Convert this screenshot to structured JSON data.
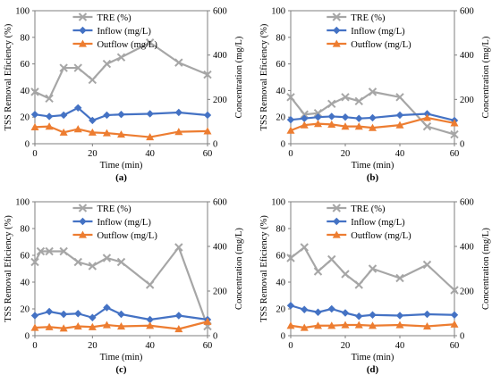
{
  "chart_data": [
    {
      "type": "line",
      "panel_label": "(a)",
      "xlabel": "Time (min)",
      "ylabel_left": "TSS Removal Eficiency (%)",
      "ylabel_right": "Concentration (mg/L)",
      "xlim": [
        0,
        60
      ],
      "ylim_left": [
        0,
        100
      ],
      "ylim_right": [
        0,
        600
      ],
      "x_ticks": [
        "0",
        "20",
        "40",
        "60"
      ],
      "y_left_ticks": [
        "0",
        "20",
        "40",
        "60",
        "80",
        "100"
      ],
      "y_right_ticks": [
        "0",
        "200",
        "400",
        "600"
      ],
      "legend_position": "top-center",
      "grid": false,
      "series": [
        {
          "name": "TRE (%)",
          "axis": "left",
          "color": "#a6a6a6",
          "marker": "x",
          "x": [
            0,
            5,
            10,
            15,
            20,
            25,
            30,
            40,
            50,
            60
          ],
          "y": [
            39,
            34,
            57,
            57,
            48,
            60,
            65,
            76,
            61,
            52
          ]
        },
        {
          "name": "Inflow (mg/L)",
          "axis": "right",
          "color": "#4472c4",
          "marker": "diamond",
          "x": [
            0,
            5,
            10,
            15,
            20,
            25,
            30,
            40,
            50,
            60
          ],
          "y": [
            132,
            123,
            129,
            162,
            105,
            129,
            132,
            135,
            141,
            129
          ]
        },
        {
          "name": "Outflow (mg/L)",
          "axis": "right",
          "color": "#ed7d31",
          "marker": "triangle",
          "x": [
            0,
            5,
            10,
            15,
            20,
            25,
            30,
            40,
            50,
            60
          ],
          "y": [
            75,
            78,
            51,
            66,
            51,
            48,
            42,
            30,
            54,
            57
          ]
        }
      ]
    },
    {
      "type": "line",
      "panel_label": "(b)",
      "xlabel": "Time (min)",
      "ylabel_left": "TSS Removal Eficiency (%)",
      "ylabel_right": "Concentration (mg/L)",
      "xlim": [
        0,
        60
      ],
      "ylim_left": [
        0,
        100
      ],
      "ylim_right": [
        0,
        600
      ],
      "x_ticks": [
        "0",
        "20",
        "40",
        "60"
      ],
      "y_left_ticks": [
        "0",
        "20",
        "40",
        "60",
        "80",
        "100"
      ],
      "y_right_ticks": [
        "0",
        "200",
        "400",
        "600"
      ],
      "legend_position": "top-center",
      "grid": false,
      "series": [
        {
          "name": "TRE (%)",
          "axis": "left",
          "color": "#a6a6a6",
          "marker": "x",
          "x": [
            0,
            5,
            10,
            15,
            20,
            25,
            30,
            40,
            50,
            60
          ],
          "y": [
            35,
            22,
            23,
            30,
            35,
            32,
            39,
            35,
            13,
            7
          ]
        },
        {
          "name": "Inflow (mg/L)",
          "axis": "right",
          "color": "#4472c4",
          "marker": "diamond",
          "x": [
            0,
            5,
            10,
            15,
            20,
            25,
            30,
            40,
            50,
            60
          ],
          "y": [
            108,
            114,
            120,
            123,
            120,
            114,
            117,
            129,
            135,
            105
          ]
        },
        {
          "name": "Outflow (mg/L)",
          "axis": "right",
          "color": "#ed7d31",
          "marker": "triangle",
          "x": [
            0,
            5,
            10,
            15,
            20,
            25,
            30,
            40,
            50,
            60
          ],
          "y": [
            60,
            84,
            90,
            87,
            78,
            78,
            72,
            84,
            117,
            93
          ]
        }
      ]
    },
    {
      "type": "line",
      "panel_label": "(c)",
      "xlabel": "Time (min)",
      "ylabel_left": "TSS Removal Eficiency (%)",
      "ylabel_right": "Concentration (mg/L)",
      "xlim": [
        0,
        60
      ],
      "ylim_left": [
        0,
        100
      ],
      "ylim_right": [
        0,
        600
      ],
      "x_ticks": [
        "0",
        "20",
        "40",
        "60"
      ],
      "y_left_ticks": [
        "0",
        "20",
        "40",
        "60",
        "80",
        "100"
      ],
      "y_right_ticks": [
        "0",
        "200",
        "400",
        "600"
      ],
      "legend_position": "top-center",
      "grid": false,
      "series": [
        {
          "name": "TRE (%)",
          "axis": "left",
          "color": "#a6a6a6",
          "marker": "x",
          "x": [
            0,
            2,
            5,
            10,
            15,
            20,
            25,
            30,
            40,
            50,
            60
          ],
          "y": [
            55,
            63,
            63,
            63,
            55,
            52,
            58,
            55,
            38,
            66,
            7
          ]
        },
        {
          "name": "Inflow (mg/L)",
          "axis": "right",
          "color": "#4472c4",
          "marker": "diamond",
          "x": [
            0,
            5,
            10,
            15,
            20,
            25,
            30,
            40,
            50,
            60
          ],
          "y": [
            90,
            108,
            96,
            99,
            81,
            126,
            96,
            72,
            90,
            72
          ]
        },
        {
          "name": "Outflow (mg/L)",
          "axis": "right",
          "color": "#ed7d31",
          "marker": "triangle",
          "x": [
            0,
            5,
            10,
            15,
            20,
            25,
            30,
            40,
            50,
            60
          ],
          "y": [
            36,
            39,
            33,
            42,
            39,
            48,
            42,
            45,
            30,
            63
          ]
        }
      ]
    },
    {
      "type": "line",
      "panel_label": "(d)",
      "xlabel": "Time (min)",
      "ylabel_left": "TSS Removal Eficiency (%)",
      "ylabel_right": "Concentration (mg/L)",
      "xlim": [
        0,
        60
      ],
      "ylim_left": [
        0,
        100
      ],
      "ylim_right": [
        0,
        600
      ],
      "x_ticks": [
        "0",
        "20",
        "40",
        "60"
      ],
      "y_left_ticks": [
        "0",
        "20",
        "40",
        "60",
        "80",
        "100"
      ],
      "y_right_ticks": [
        "0",
        "200",
        "400",
        "600"
      ],
      "legend_position": "top-center",
      "grid": false,
      "series": [
        {
          "name": "TRE (%)",
          "axis": "left",
          "color": "#a6a6a6",
          "marker": "x",
          "x": [
            0,
            5,
            10,
            15,
            20,
            25,
            30,
            40,
            50,
            60
          ],
          "y": [
            58,
            66,
            48,
            57,
            46,
            38,
            50,
            43,
            53,
            34
          ]
        },
        {
          "name": "Inflow (mg/L)",
          "axis": "right",
          "color": "#4472c4",
          "marker": "diamond",
          "x": [
            0,
            5,
            10,
            15,
            20,
            25,
            30,
            40,
            50,
            60
          ],
          "y": [
            135,
            117,
            105,
            120,
            102,
            87,
            93,
            90,
            96,
            93
          ]
        },
        {
          "name": "Outflow (mg/L)",
          "axis": "right",
          "color": "#ed7d31",
          "marker": "triangle",
          "x": [
            0,
            5,
            10,
            15,
            20,
            25,
            30,
            40,
            50,
            60
          ],
          "y": [
            45,
            36,
            45,
            45,
            48,
            48,
            45,
            48,
            42,
            51
          ]
        }
      ]
    }
  ]
}
